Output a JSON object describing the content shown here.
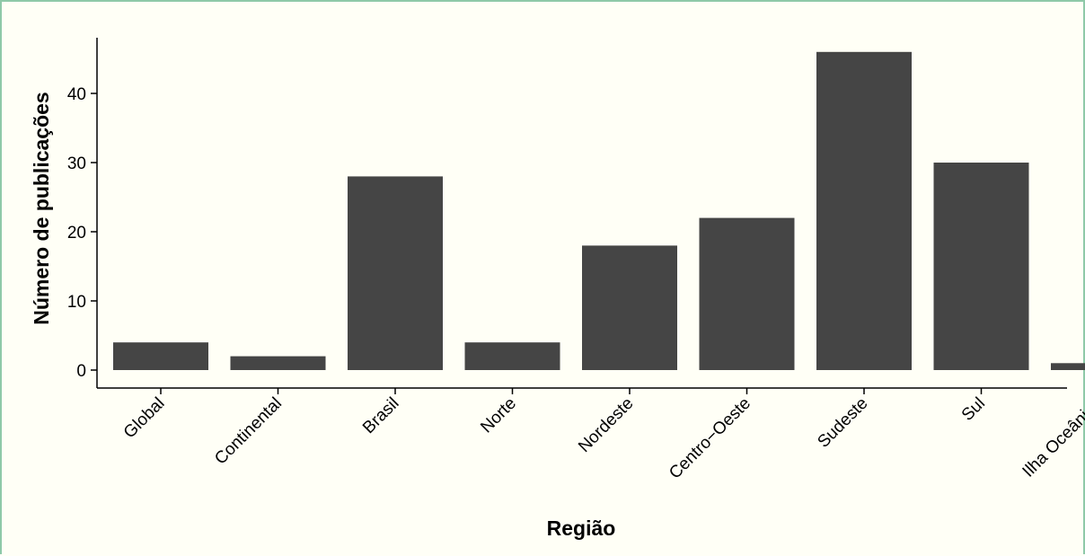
{
  "chart_data": {
    "type": "bar",
    "title": "",
    "xlabel": "Região",
    "ylabel": "Número de publicações",
    "categories": [
      "Global",
      "Continental",
      "Brasil",
      "Norte",
      "Nordeste",
      "Centro−Oeste",
      "Sudeste",
      "Sul",
      "Ilha Oceânica"
    ],
    "values": [
      4,
      2,
      28,
      4,
      18,
      22,
      46,
      30,
      1
    ],
    "ylim": [
      0,
      48
    ],
    "yticks": [
      0,
      10,
      20,
      30,
      40
    ],
    "ytick_labels": [
      "0",
      "10",
      "20",
      "30",
      "40"
    ],
    "bar_color": "#454545",
    "grid": false,
    "legend": "none"
  }
}
